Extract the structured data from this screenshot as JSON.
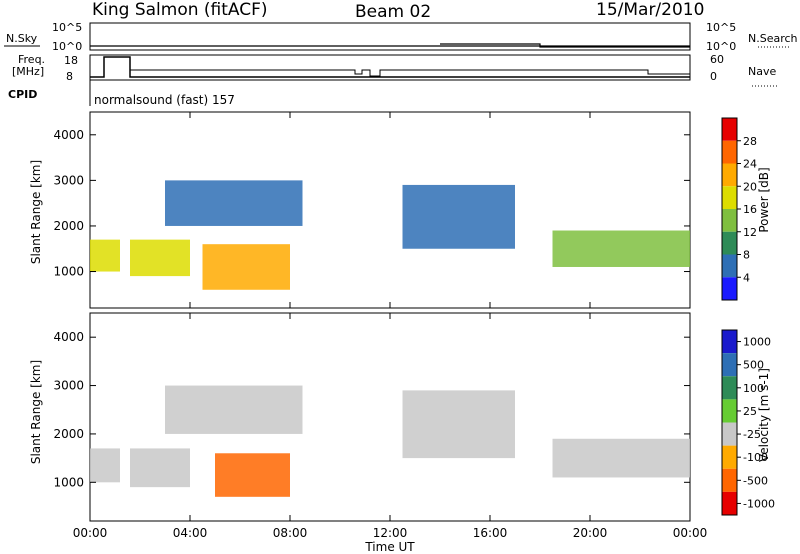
{
  "header": {
    "station": "King Salmon (fitACF)",
    "beam": "Beam 02",
    "date": "15/Mar/2010"
  },
  "top_panel": {
    "nsky_label": "N.Sky",
    "nsearch_label": "N.Search",
    "nsky_ticks": [
      "10^5",
      "10^0"
    ],
    "right_ticks_top": [
      "10^5",
      "10^0"
    ],
    "freq_label": "Freq.",
    "freq_unit": "[MHz]",
    "freq_ticks": [
      "18",
      "8"
    ],
    "nave_label": "Nave",
    "nave_ticks": [
      "60",
      "0"
    ],
    "cpid_label": "CPID",
    "cpid_value": "normalsound (fast) 157"
  },
  "chart_data": [
    {
      "type": "heatmap",
      "name": "power",
      "ylabel": "Slant Range [km]",
      "ylim": [
        200,
        4500
      ],
      "yticks": [
        1000,
        2000,
        3000,
        4000
      ],
      "colorbar_label": "Power [dB]",
      "colorbar_ticks": [
        "28",
        "24",
        "20",
        "16",
        "12",
        "8",
        "4"
      ],
      "colorbar_colors": [
        "#e60000",
        "#ff6600",
        "#ffaa00",
        "#dddd00",
        "#7fbf3f",
        "#2e8b57",
        "#2e6fb5",
        "#1a1aff"
      ],
      "regions": [
        {
          "t0": 0.0,
          "t1": 1.2,
          "r0": 1000,
          "r1": 1700,
          "value": 16
        },
        {
          "t0": 1.6,
          "t1": 4.0,
          "r0": 900,
          "r1": 1700,
          "value": 18
        },
        {
          "t0": 4.5,
          "t1": 8.0,
          "r0": 600,
          "r1": 1600,
          "value": 22
        },
        {
          "t0": 3.0,
          "t1": 8.5,
          "r0": 2000,
          "r1": 3000,
          "value": 6
        },
        {
          "t0": 12.5,
          "t1": 17.0,
          "r0": 1500,
          "r1": 2900,
          "value": 5
        },
        {
          "t0": 18.5,
          "t1": 24.0,
          "r0": 1100,
          "r1": 1900,
          "value": 12
        }
      ]
    },
    {
      "type": "heatmap",
      "name": "velocity",
      "ylabel": "Slant Range [km]",
      "xlabel": "Time UT",
      "ylim": [
        200,
        4500
      ],
      "yticks": [
        1000,
        2000,
        3000,
        4000
      ],
      "xticks": [
        "00:00",
        "04:00",
        "08:00",
        "12:00",
        "16:00",
        "20:00",
        "00:00"
      ],
      "colorbar_label": "Velocity [m s-1]",
      "colorbar_ticks": [
        "1000",
        "500",
        "100",
        "25",
        "-25",
        "-100",
        "-500",
        "-1000"
      ],
      "colorbar_colors": [
        "#1a1acc",
        "#2e6fb5",
        "#2e8b57",
        "#66cc33",
        "#c8c8c8",
        "#ffaa00",
        "#ff6600",
        "#e60000"
      ],
      "regions": [
        {
          "t0": 0.0,
          "t1": 1.2,
          "r0": 1000,
          "r1": 1700,
          "value": 0
        },
        {
          "t0": 1.6,
          "t1": 4.0,
          "r0": 900,
          "r1": 1700,
          "value": 0
        },
        {
          "t0": 5.0,
          "t1": 8.0,
          "r0": 700,
          "r1": 1600,
          "value": -150
        },
        {
          "t0": 3.0,
          "t1": 8.5,
          "r0": 2000,
          "r1": 3000,
          "value": 0
        },
        {
          "t0": 12.5,
          "t1": 17.0,
          "r0": 1500,
          "r1": 2900,
          "value": 0
        },
        {
          "t0": 18.5,
          "t1": 24.0,
          "r0": 1100,
          "r1": 1900,
          "value": 0
        }
      ]
    }
  ]
}
